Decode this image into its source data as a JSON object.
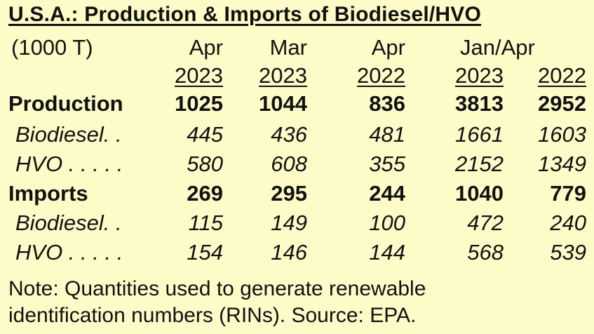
{
  "title": "U.S.A.: Production & Imports of Biodiesel/HVO",
  "unit_label": "(1000 T)",
  "columns": {
    "month_headers": [
      "Apr",
      "Mar",
      "Apr"
    ],
    "ytd_header": "Jan/Apr",
    "years": [
      "2023",
      "2023",
      "2022",
      "2023",
      "2022"
    ]
  },
  "rows": [
    {
      "label": "Production",
      "values": [
        "1025",
        "1044",
        "836",
        "3813",
        "2952"
      ]
    },
    {
      "label": "Biodiesel. .",
      "values": [
        "445",
        "436",
        "481",
        "1661",
        "1603"
      ]
    },
    {
      "label": "HVO . . . . .",
      "values": [
        "580",
        "608",
        "355",
        "2152",
        "1349"
      ]
    },
    {
      "label": "Imports",
      "values": [
        "269",
        "295",
        "244",
        "1040",
        "779"
      ]
    },
    {
      "label": "Biodiesel. .",
      "values": [
        "115",
        "149",
        "100",
        "472",
        "240"
      ]
    },
    {
      "label": "HVO . . . . .",
      "values": [
        "154",
        "146",
        "144",
        "568",
        "539"
      ]
    }
  ],
  "note": {
    "line1": "Note:  Quantities used to generate renewable",
    "line2": "identification numbers (RINs).  Source: EPA."
  },
  "colors": {
    "background": "#fdfbc8",
    "text": "#111111"
  }
}
